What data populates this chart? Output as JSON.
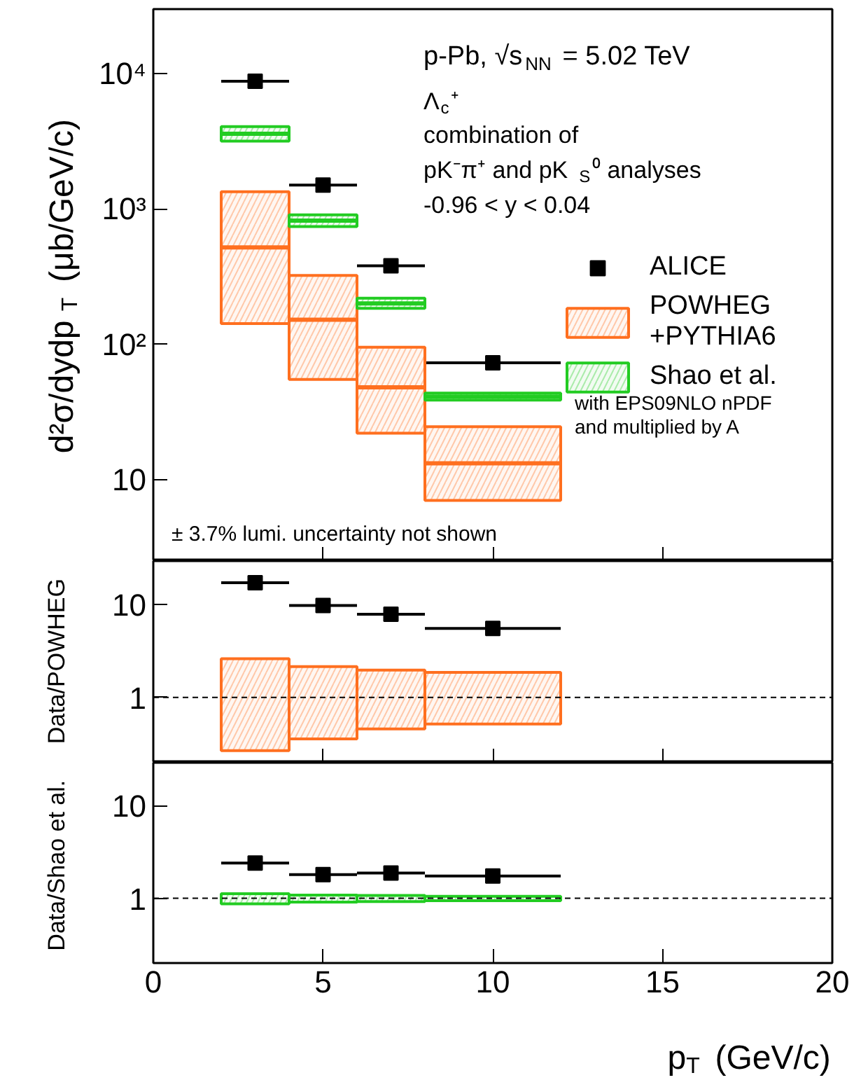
{
  "chart_data": [
    {
      "type": "scatter",
      "ylabel": "d²σ/dydp$_{T}$ (μb/GeV/c)",
      "xlim": [
        0,
        20
      ],
      "xticks": [
        0,
        5,
        10,
        15,
        20
      ],
      "ylim": [
        2.5,
        30000
      ],
      "yticks": [
        10,
        {
          "value": 100,
          "label": "10²"
        },
        {
          "value": 1000,
          "label": "10³"
        },
        {
          "value": 10000,
          "label": "10⁴"
        }
      ],
      "log": "y",
      "tick_labels": "y",
      "grid": false,
      "legend": "right",
      "marker": "square",
      "annotations": [
        "p-Pb, √s$_{NN}$ = 5.02 TeV",
        "Λ$_{c}$⁺",
        "combination of",
        "pK⁻π⁺ and pK$_{S}$⁰ analyses",
        "-0.96 < y < 0.04",
        "with EPS09NLO nPDF",
        "and multiplied by A",
        "± 3.7% lumi. uncertainty not shown"
      ],
      "series": [
        {
          "name": "ALICE",
          "color": "#000000",
          "x": [
            3,
            5,
            7,
            10
          ],
          "xerrors": [
            1,
            1,
            1,
            2
          ],
          "values": [
            8800,
            1500,
            380,
            73
          ]
        },
        {
          "name": "POWHEG\n+PYTHIA6",
          "type": "bar",
          "color": "#ff6f1f",
          "x": [
            3,
            5,
            7,
            10
          ],
          "base": [
            142,
            55,
            22,
            7.0
          ],
          "values": [
            1198,
            268,
            73,
            17.6
          ]
        },
        {
          "type": "line",
          "marker": "none",
          "color": "#ff6f1f",
          "x": [
            2,
            4
          ],
          "values": [
            520,
            520
          ]
        },
        {
          "type": "line",
          "marker": "none",
          "color": "#ff6f1f",
          "x": [
            4,
            6
          ],
          "values": [
            152,
            152
          ]
        },
        {
          "type": "line",
          "marker": "none",
          "color": "#ff6f1f",
          "x": [
            6,
            8
          ],
          "values": [
            48,
            48
          ]
        },
        {
          "type": "line",
          "marker": "none",
          "color": "#ff6f1f",
          "x": [
            8,
            12
          ],
          "values": [
            13.2,
            13.2
          ]
        },
        {
          "name": "Shao et al.",
          "type": "bar",
          "color": "#22cc22",
          "x": [
            3,
            5,
            7,
            10
          ],
          "base": [
            3170,
            740,
            184,
            38.7
          ],
          "values": [
            890,
            164,
            35,
            4.9
          ]
        },
        {
          "type": "line",
          "marker": "none",
          "color": "#22cc22",
          "x": [
            2,
            4
          ],
          "values": [
            3600,
            3600
          ]
        },
        {
          "type": "line",
          "marker": "none",
          "color": "#22cc22",
          "x": [
            4,
            6
          ],
          "values": [
            820,
            820
          ]
        },
        {
          "type": "line",
          "marker": "none",
          "color": "#22cc22",
          "x": [
            6,
            8
          ],
          "values": [
            200,
            200
          ]
        },
        {
          "type": "line",
          "marker": "none",
          "color": "#22cc22",
          "x": [
            8,
            12
          ],
          "values": [
            41,
            41
          ]
        }
      ]
    },
    {
      "type": "scatter",
      "ylabel": "Data/POWHEG",
      "xlim": [
        0,
        20
      ],
      "xticks": [
        0,
        5,
        10,
        15,
        20
      ],
      "ylim": [
        0.2,
        29
      ],
      "yticks": [
        1,
        10
      ],
      "log": "y",
      "tick_labels": "y",
      "grid": false,
      "marker": "square",
      "ref_lines": [
        {
          "axis": "y",
          "value": 1,
          "line_style": "dashed",
          "color": "#000000"
        }
      ],
      "series": [
        {
          "color": "#000000",
          "x": [
            3,
            5,
            7,
            10
          ],
          "xerrors": [
            1,
            1,
            1,
            2
          ],
          "values": [
            17,
            9.7,
            7.8,
            5.5
          ]
        },
        {
          "type": "bar",
          "color": "#ff6f1f",
          "x": [
            3,
            5,
            7,
            10
          ],
          "base": [
            0.27,
            0.36,
            0.46,
            0.52
          ],
          "values": [
            2.33,
            1.78,
            1.51,
            1.34
          ]
        }
      ]
    },
    {
      "type": "scatter",
      "ylabel": "Data/Shao et al.",
      "xlabel": "p$_{T}$ (GeV/c)",
      "xlim": [
        0,
        20
      ],
      "xticks": [
        0,
        5,
        10,
        15,
        20
      ],
      "ylim": [
        0.2,
        29
      ],
      "yticks": [
        1,
        10
      ],
      "log": "y",
      "grid": false,
      "marker": "square",
      "ref_lines": [
        {
          "axis": "y",
          "value": 1,
          "line_style": "dashed",
          "color": "#000000"
        }
      ],
      "series": [
        {
          "color": "#000000",
          "x": [
            3,
            5,
            7,
            10
          ],
          "xerrors": [
            1,
            1,
            1,
            2
          ],
          "values": [
            2.4,
            1.8,
            1.87,
            1.74
          ]
        },
        {
          "type": "bar",
          "color": "#22cc22",
          "x": [
            3,
            5,
            7,
            10
          ],
          "base": [
            0.87,
            0.91,
            0.92,
            0.94
          ],
          "values": [
            0.25,
            0.17,
            0.15,
            0.11
          ]
        }
      ]
    }
  ]
}
